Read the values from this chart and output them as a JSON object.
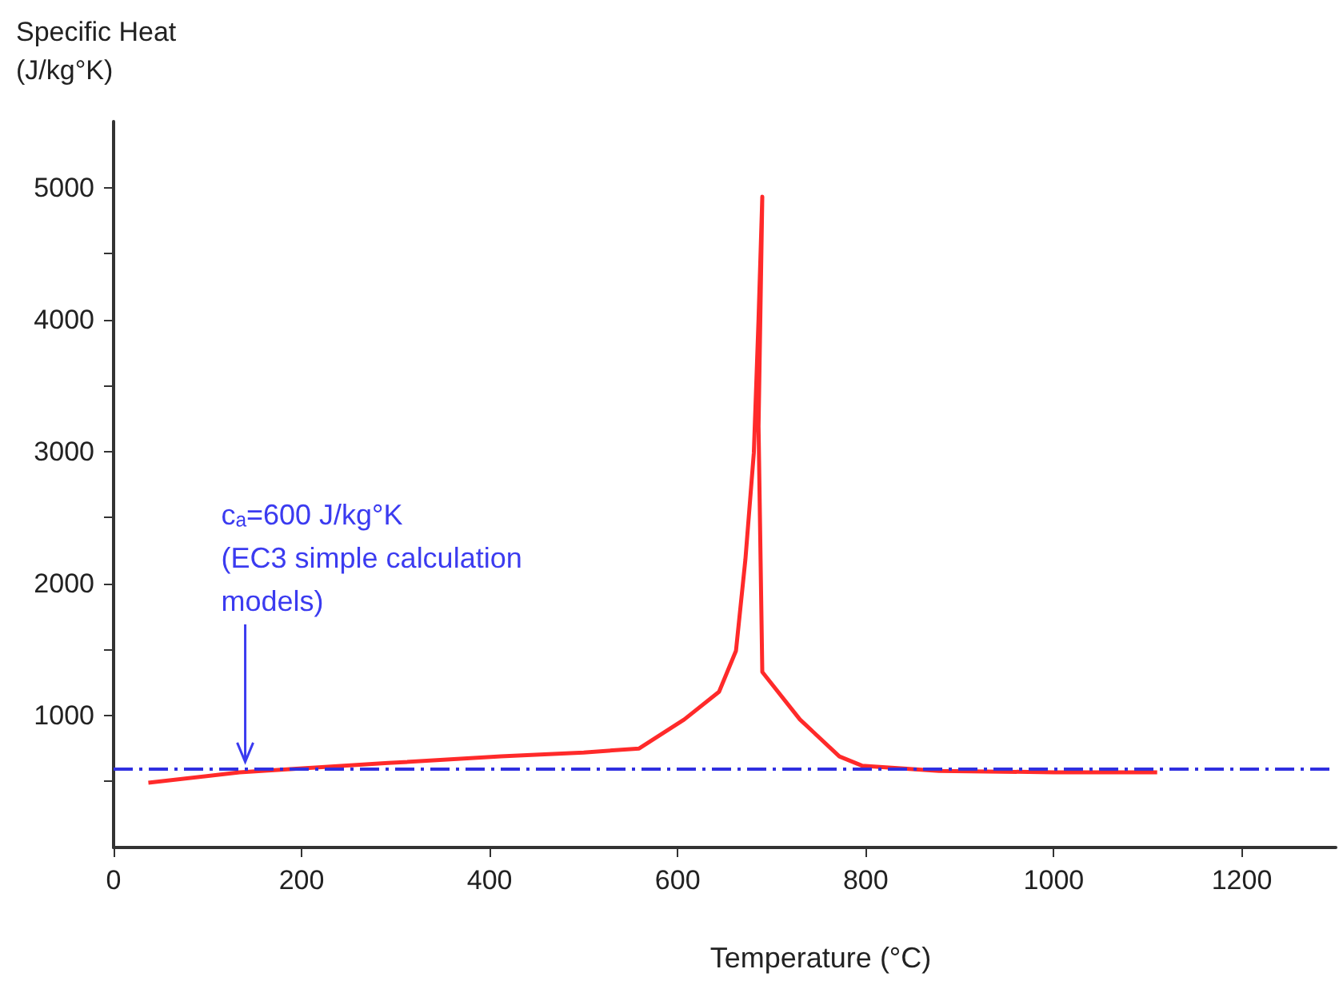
{
  "chart_data": {
    "type": "line",
    "xlabel": "Temperature (°C)",
    "ylabel": "Specific Heat\n(J/kg°K)",
    "series": [
      {
        "color": "#ff2a2a",
        "x": [
          37,
          134,
          292,
          412,
          500,
          559,
          607,
          644,
          662,
          672,
          681,
          686,
          690,
          686,
          690,
          730,
          772,
          796,
          878,
          1000,
          1110
        ],
        "values": [
          490,
          570,
          640,
          690,
          720,
          750,
          970,
          1180,
          1490,
          2180,
          2990,
          4000,
          4930,
          3190,
          1330,
          970,
          690,
          620,
          580,
          570,
          570
        ]
      }
    ],
    "xlim": [
      0,
      1300
    ],
    "xticks": [
      0,
      200,
      400,
      600,
      800,
      1000,
      1200
    ],
    "ylim": [
      0,
      5500
    ],
    "yticks": [
      {
        "value": 500,
        "label": null
      },
      1000,
      {
        "value": 1500,
        "label": null
      },
      2000,
      {
        "value": 2500,
        "label": null
      },
      3000,
      {
        "value": 3500,
        "label": null
      },
      4000,
      {
        "value": 4500,
        "label": null
      },
      5000
    ],
    "ref_lines": [
      {
        "axis": "y",
        "value": 600,
        "color": "#2f2fe0",
        "line_style": "dashed"
      }
    ],
    "annotations": [
      {
        "text": "cₐ=600 J/kg°K\n(EC3 simple calculation\nmodels)",
        "x": 140,
        "y": 600
      }
    ],
    "grid": false,
    "marker": "none",
    "line_style": "solid"
  }
}
